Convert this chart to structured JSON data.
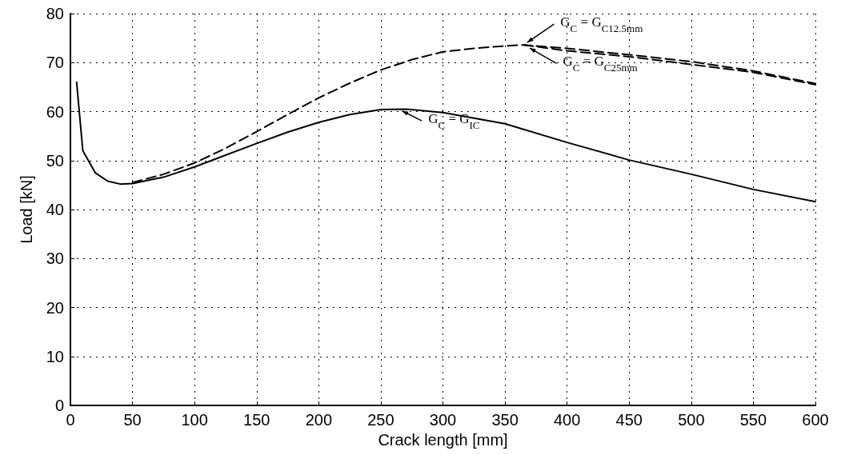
{
  "chart_data": {
    "type": "line",
    "xlabel": "Crack length [mm]",
    "ylabel": "Load [kN]",
    "xlim": [
      0,
      600
    ],
    "xticks": [
      0,
      50,
      100,
      150,
      200,
      250,
      300,
      350,
      400,
      450,
      500,
      550,
      600
    ],
    "ylim": [
      0,
      80
    ],
    "yticks": [
      0,
      10,
      20,
      30,
      40,
      50,
      60,
      70,
      80
    ],
    "grid": true,
    "marker": "none",
    "series": [
      {
        "color": "#000000",
        "line_style": "solid",
        "x": [
          5,
          10,
          20,
          30,
          40,
          50,
          75,
          100,
          125,
          150,
          175,
          200,
          225,
          250,
          270,
          300,
          350,
          400,
          450,
          500,
          550,
          600
        ],
        "values": [
          66,
          52,
          47.5,
          45.8,
          45.2,
          45.3,
          46.6,
          48.7,
          51.1,
          53.5,
          55.8,
          57.8,
          59.4,
          60.4,
          60.5,
          59.8,
          57.5,
          53.7,
          50.1,
          47.2,
          44.1,
          41.6
        ]
      },
      {
        "color": "#000000",
        "line_style": "dashed",
        "x": [
          50,
          75,
          100,
          125,
          150,
          175,
          200,
          225,
          250,
          275,
          300,
          325,
          350,
          365,
          400,
          450,
          500,
          550,
          600
        ],
        "values": [
          45.5,
          47.2,
          49.5,
          52.5,
          55.9,
          59.4,
          62.8,
          65.8,
          68.5,
          70.6,
          72.2,
          72.9,
          73.4,
          73.6,
          72.9,
          71.6,
          70.2,
          68.3,
          65.7
        ]
      },
      {
        "color": "#000000",
        "line_style": "dashed",
        "x": [
          365,
          400,
          450,
          500,
          550,
          600
        ],
        "values": [
          73.6,
          72.4,
          71.2,
          69.6,
          68.0,
          65.5
        ]
      }
    ],
    "annotations": [
      {
        "text": "G$_{C}$ = G$_{IC}$",
        "x": 265,
        "y": 60.4
      },
      {
        "text": "G$_{C}$ = G$_{C12.5mm}$",
        "x": 365,
        "y": 73.6
      },
      {
        "text": "G$_{C}$ = G$_{C25mm}$",
        "x": 367,
        "y": 73.4
      }
    ]
  }
}
